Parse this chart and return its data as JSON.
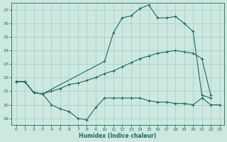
{
  "xlabel": "Humidex (Indice chaleur)",
  "xlim": [
    -0.5,
    23.5
  ],
  "ylim": [
    18.5,
    27.5
  ],
  "xticks": [
    0,
    1,
    2,
    3,
    4,
    5,
    6,
    7,
    8,
    9,
    10,
    11,
    12,
    13,
    14,
    15,
    16,
    17,
    18,
    19,
    20,
    21,
    22,
    23
  ],
  "yticks": [
    19,
    20,
    21,
    22,
    23,
    24,
    25,
    26,
    27
  ],
  "background_color": "#cce8e0",
  "grid_color": "#aacfc8",
  "line_color": "#1a6b5a",
  "line1_x": [
    0,
    1,
    2,
    3,
    4,
    5,
    6,
    7,
    8,
    9,
    10,
    11,
    12,
    13,
    14,
    15,
    16,
    17,
    18,
    19,
    20,
    21,
    22,
    23
  ],
  "line1_y": [
    21.7,
    21.7,
    20.9,
    20.8,
    20.0,
    19.7,
    19.5,
    19.0,
    18.9,
    19.8,
    20.5,
    20.5,
    20.5,
    20.5,
    20.5,
    20.3,
    20.2,
    20.2,
    20.1,
    20.1,
    20.0,
    20.5,
    20.0,
    20.0
  ],
  "line1_markers": [
    0,
    1,
    2,
    3,
    4,
    5,
    6,
    7,
    8,
    9,
    10,
    23
  ],
  "line2_x": [
    0,
    1,
    2,
    3,
    4,
    5,
    6,
    7,
    8,
    9,
    10,
    11,
    12,
    13,
    14,
    15,
    16,
    17,
    18,
    19,
    20,
    21,
    22
  ],
  "line2_y": [
    21.7,
    21.7,
    20.9,
    20.8,
    21.0,
    21.2,
    21.5,
    21.6,
    21.8,
    22.0,
    22.3,
    22.5,
    22.8,
    23.1,
    23.4,
    23.6,
    23.8,
    23.9,
    24.0,
    23.9,
    23.8,
    23.4,
    20.7
  ],
  "line2_markers": [
    0,
    1,
    2,
    3,
    10,
    11,
    12,
    13,
    14,
    15,
    16,
    17,
    18,
    19,
    20,
    21,
    22
  ],
  "line3_x": [
    0,
    1,
    2,
    3,
    10,
    11,
    12,
    13,
    14,
    15,
    16,
    17,
    18,
    19,
    20,
    21,
    22
  ],
  "line3_y": [
    21.7,
    21.7,
    20.9,
    20.8,
    23.2,
    25.3,
    26.4,
    26.55,
    27.1,
    27.35,
    26.4,
    26.4,
    26.5,
    26.0,
    25.4,
    20.7,
    20.5
  ]
}
